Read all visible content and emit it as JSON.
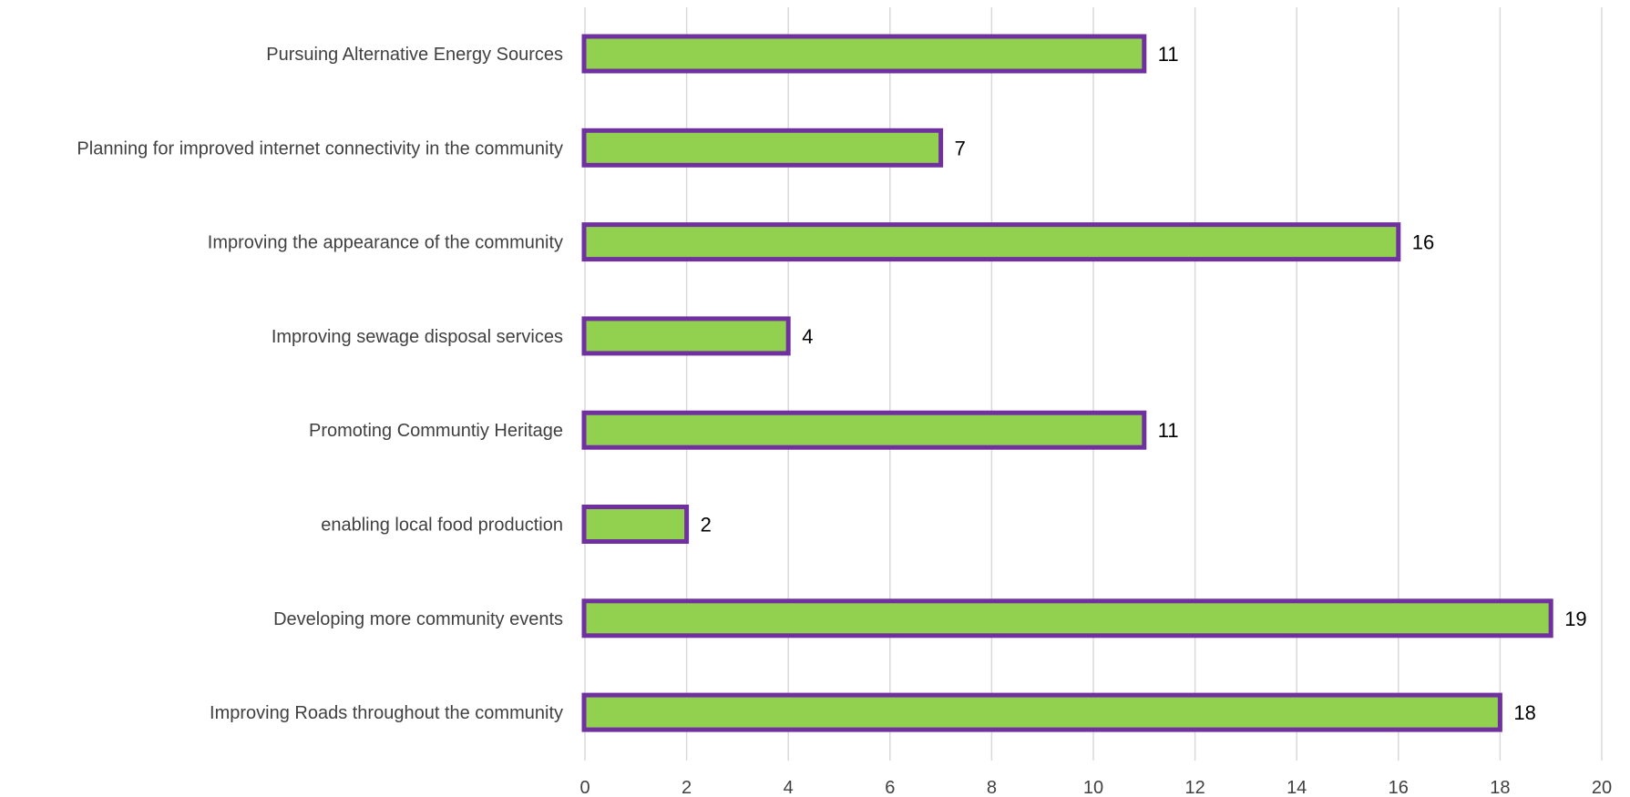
{
  "chart_data": {
    "type": "bar",
    "orientation": "horizontal",
    "categories": [
      "Pursuing Alternative Energy Sources",
      "Planning for improved internet connectivity in the community",
      "Improving the appearance of the community",
      "Improving sewage disposal services",
      "Promoting Communtiy Heritage",
      "enabling local food production",
      "Developing more community events",
      "Improving Roads throughout the community"
    ],
    "values": [
      11,
      7,
      16,
      4,
      11,
      2,
      19,
      18
    ],
    "data_labels": [
      "11",
      "7",
      "16",
      "4",
      "11",
      "2",
      "19",
      "18"
    ],
    "xlim": [
      0,
      20
    ],
    "xticks": [
      0,
      2,
      4,
      6,
      8,
      10,
      12,
      14,
      16,
      18,
      20
    ],
    "xtick_labels": [
      "0",
      "2",
      "4",
      "6",
      "8",
      "10",
      "12",
      "14",
      "16",
      "18",
      "20"
    ],
    "grid": true,
    "colors": {
      "bar_fill": "#92d050",
      "bar_stroke": "#7030a0",
      "gridline": "#d9d9d9",
      "label_text": "#404040",
      "data_label_text": "#000000"
    }
  }
}
